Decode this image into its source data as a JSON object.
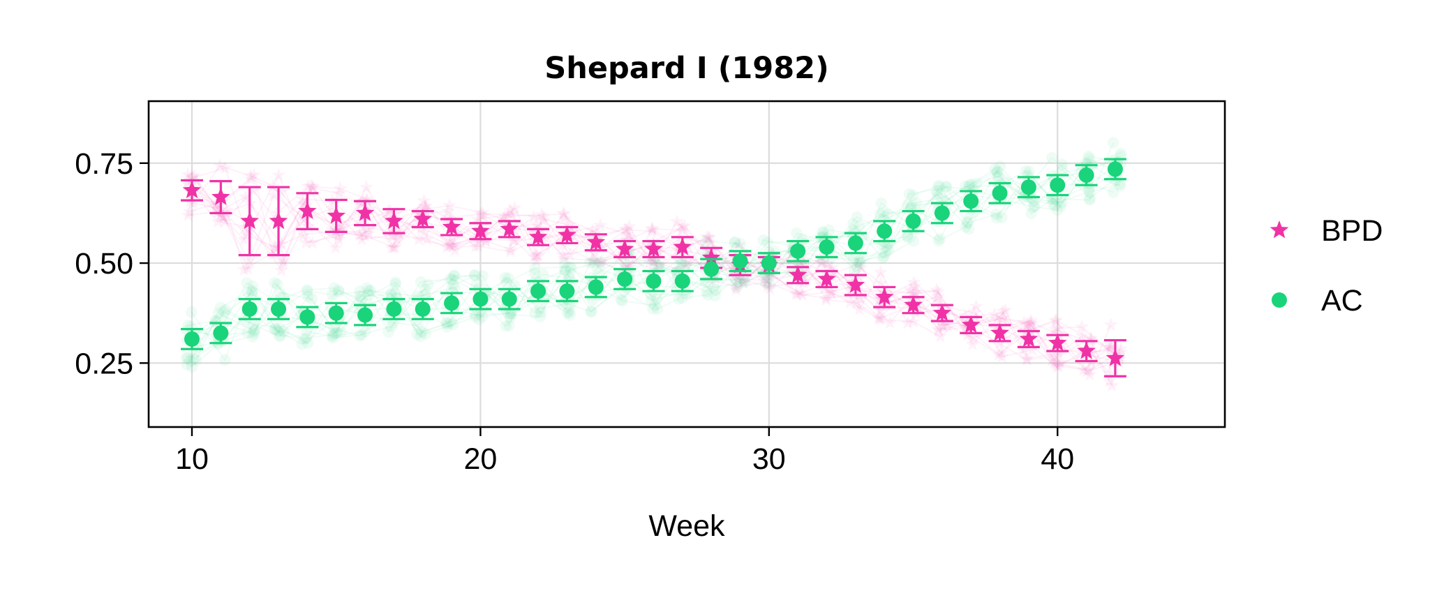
{
  "chart_data": {
    "type": "scatter",
    "title": "Shepard I (1982)",
    "xlabel": "Week",
    "ylabel": "",
    "xlim": [
      8.5,
      45.8
    ],
    "ylim": [
      0.09,
      0.905
    ],
    "xticks": [
      10,
      20,
      30,
      40
    ],
    "yticks": [
      0.25,
      0.5,
      0.75
    ],
    "ytick_labels": [
      "0.25",
      "0.50",
      "0.75"
    ],
    "grid": true,
    "legend_position": "right",
    "series": [
      {
        "name": "BPD",
        "marker": "star",
        "color": "#f032a6",
        "x": [
          10,
          11,
          12,
          13,
          14,
          15,
          16,
          17,
          18,
          19,
          20,
          21,
          22,
          23,
          24,
          25,
          26,
          27,
          28,
          29,
          30,
          31,
          32,
          33,
          34,
          35,
          36,
          37,
          38,
          39,
          40,
          41,
          42
        ],
        "values": [
          0.682,
          0.665,
          0.605,
          0.605,
          0.63,
          0.618,
          0.625,
          0.605,
          0.61,
          0.59,
          0.58,
          0.585,
          0.565,
          0.57,
          0.552,
          0.535,
          0.535,
          0.54,
          0.513,
          0.495,
          0.495,
          0.47,
          0.46,
          0.445,
          0.415,
          0.395,
          0.375,
          0.345,
          0.325,
          0.31,
          0.3,
          0.28,
          0.262
        ],
        "errors": [
          0.025,
          0.04,
          0.085,
          0.085,
          0.045,
          0.04,
          0.03,
          0.03,
          0.02,
          0.02,
          0.02,
          0.02,
          0.02,
          0.02,
          0.02,
          0.02,
          0.02,
          0.025,
          0.025,
          0.025,
          0.02,
          0.02,
          0.02,
          0.025,
          0.025,
          0.02,
          0.02,
          0.02,
          0.02,
          0.02,
          0.02,
          0.025,
          0.045
        ]
      },
      {
        "name": "AC",
        "marker": "circle",
        "color": "#19d47a",
        "x": [
          10,
          11,
          12,
          13,
          14,
          15,
          16,
          17,
          18,
          19,
          20,
          21,
          22,
          23,
          24,
          25,
          26,
          27,
          28,
          29,
          30,
          31,
          32,
          33,
          34,
          35,
          36,
          37,
          38,
          39,
          40,
          41,
          42
        ],
        "values": [
          0.31,
          0.325,
          0.385,
          0.385,
          0.365,
          0.375,
          0.37,
          0.385,
          0.385,
          0.4,
          0.41,
          0.41,
          0.43,
          0.43,
          0.44,
          0.46,
          0.455,
          0.455,
          0.485,
          0.505,
          0.5,
          0.53,
          0.54,
          0.55,
          0.58,
          0.605,
          0.625,
          0.655,
          0.675,
          0.69,
          0.695,
          0.72,
          0.735
        ]
      }
    ]
  },
  "legend": {
    "items": [
      {
        "label": "BPD",
        "marker": "star",
        "color": "#f032a6"
      },
      {
        "label": "AC",
        "marker": "circle",
        "color": "#19d47a"
      }
    ]
  }
}
